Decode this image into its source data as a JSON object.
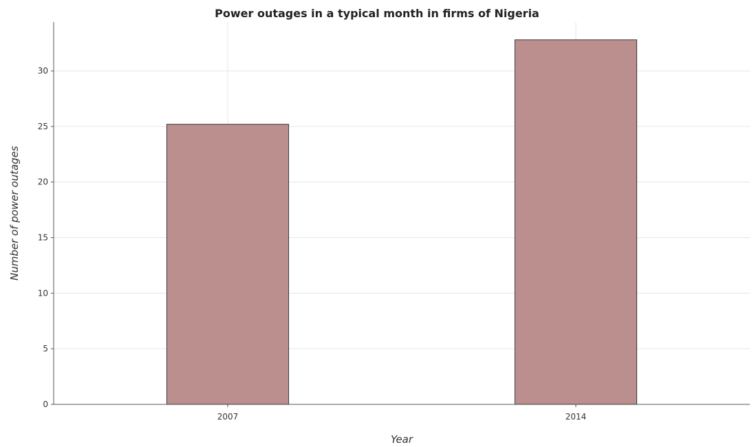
{
  "chart_data": {
    "type": "bar",
    "title": "Power outages in a typical month in firms of Nigeria",
    "xlabel": "Year",
    "ylabel": "Number of power outages",
    "categories": [
      "2007",
      "2014"
    ],
    "values": [
      25.2,
      32.8
    ],
    "ylim": [
      0,
      34.4
    ],
    "yticks": [
      0,
      5,
      10,
      15,
      20,
      25,
      30
    ],
    "grid": true,
    "bar_color": "#bc8f8f",
    "bar_edge_color": "#3a3a3a"
  }
}
